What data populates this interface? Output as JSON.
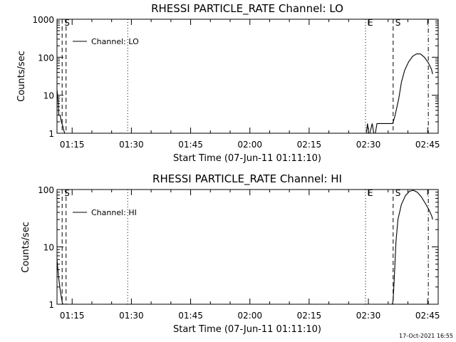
{
  "timestamp": "17-Oct-2021 16:55",
  "chart_data": [
    {
      "type": "line",
      "title": "RHESSI PARTICLE_RATE Channel: LO",
      "xlabel": "Start Time (07-Jun-11 01:11:10)",
      "ylabel": "Counts/sec",
      "x_unit": "minutes after 01:11:10",
      "xlim": [
        0,
        96.5
      ],
      "ylim": [
        1,
        1000
      ],
      "y_scale": "log",
      "x_ticks": [
        {
          "value": 3.83,
          "label": "01:15"
        },
        {
          "value": 18.83,
          "label": "01:30"
        },
        {
          "value": 33.83,
          "label": "01:45"
        },
        {
          "value": 48.83,
          "label": "02:00"
        },
        {
          "value": 63.83,
          "label": "02:15"
        },
        {
          "value": 78.83,
          "label": "02:30"
        },
        {
          "value": 93.83,
          "label": "02:45"
        }
      ],
      "y_ticks": [
        {
          "value": 1,
          "label": "1"
        },
        {
          "value": 10,
          "label": "10"
        },
        {
          "value": 100,
          "label": "100"
        },
        {
          "value": 1000,
          "label": "1000"
        }
      ],
      "legend": {
        "position": "top-left",
        "entries": [
          "Channel: LO"
        ]
      },
      "markers": [
        {
          "x": 1.3,
          "style": "dash",
          "label": "S"
        },
        {
          "x": 2.3,
          "style": "dash",
          "label": ""
        },
        {
          "x": 17.9,
          "style": "dot",
          "label": ""
        },
        {
          "x": 78.1,
          "style": "dot",
          "label": "E"
        },
        {
          "x": 85.1,
          "style": "dash",
          "label": "S"
        },
        {
          "x": 94.0,
          "style": "dashdot",
          "label": ""
        }
      ],
      "series": [
        {
          "points": [
            [
              0.0,
              14
            ],
            [
              0.2,
              9
            ],
            [
              0.35,
              6
            ],
            [
              0.45,
              3
            ],
            [
              0.55,
              3
            ],
            [
              0.8,
              3
            ],
            [
              1.1,
              2
            ],
            [
              1.5,
              1.5
            ],
            [
              1.8,
              1.1
            ],
            [
              2.0,
              1
            ],
            [
              78.3,
              1
            ],
            [
              78.6,
              1.8
            ],
            [
              78.9,
              1
            ],
            [
              79.2,
              1
            ],
            [
              79.8,
              1.8
            ],
            [
              80.2,
              1
            ],
            [
              80.6,
              1
            ],
            [
              81.0,
              1.8
            ],
            [
              85.0,
              1.8
            ],
            [
              85.6,
              3
            ],
            [
              86.5,
              8
            ],
            [
              87.2,
              22
            ],
            [
              88.0,
              45
            ],
            [
              89.0,
              75
            ],
            [
              90.0,
              105
            ],
            [
              91.0,
              122
            ],
            [
              92.0,
              122
            ],
            [
              93.0,
              100
            ],
            [
              94.0,
              72
            ],
            [
              94.8,
              48
            ],
            [
              95.1,
              36
            ]
          ]
        }
      ]
    },
    {
      "type": "line",
      "title": "RHESSI PARTICLE_RATE Channel: HI",
      "xlabel": "Start Time (07-Jun-11 01:11:10)",
      "ylabel": "Counts/sec",
      "x_unit": "minutes after 01:11:10",
      "xlim": [
        0,
        96.5
      ],
      "ylim": [
        1,
        100
      ],
      "y_scale": "log",
      "x_ticks": [
        {
          "value": 3.83,
          "label": "01:15"
        },
        {
          "value": 18.83,
          "label": "01:30"
        },
        {
          "value": 33.83,
          "label": "01:45"
        },
        {
          "value": 48.83,
          "label": "02:00"
        },
        {
          "value": 63.83,
          "label": "02:15"
        },
        {
          "value": 78.83,
          "label": "02:30"
        },
        {
          "value": 93.83,
          "label": "02:45"
        }
      ],
      "y_ticks": [
        {
          "value": 1,
          "label": "1"
        },
        {
          "value": 10,
          "label": "10"
        },
        {
          "value": 100,
          "label": "100"
        }
      ],
      "legend": {
        "position": "top-left",
        "entries": [
          "Channel: HI"
        ]
      },
      "markers": [
        {
          "x": 1.3,
          "style": "dash",
          "label": "S"
        },
        {
          "x": 2.3,
          "style": "dash",
          "label": ""
        },
        {
          "x": 17.9,
          "style": "dot",
          "label": ""
        },
        {
          "x": 78.1,
          "style": "dot",
          "label": "E"
        },
        {
          "x": 85.1,
          "style": "dash",
          "label": "S"
        },
        {
          "x": 94.0,
          "style": "dashdot",
          "label": ""
        }
      ],
      "series": [
        {
          "points": [
            [
              0.0,
              6
            ],
            [
              0.4,
              3
            ],
            [
              0.8,
              1.8
            ],
            [
              1.3,
              1.1
            ],
            [
              1.5,
              1
            ],
            [
              84.9,
              1
            ],
            [
              85.1,
              1.2
            ],
            [
              85.4,
              3
            ],
            [
              85.8,
              12
            ],
            [
              86.3,
              30
            ],
            [
              87.2,
              55
            ],
            [
              88.2,
              78
            ],
            [
              89.2,
              93
            ],
            [
              90.2,
              97
            ],
            [
              91.2,
              90
            ],
            [
              92.2,
              75
            ],
            [
              93.2,
              58
            ],
            [
              94.2,
              44
            ],
            [
              94.9,
              34
            ],
            [
              95.1,
              30
            ]
          ]
        }
      ]
    }
  ]
}
